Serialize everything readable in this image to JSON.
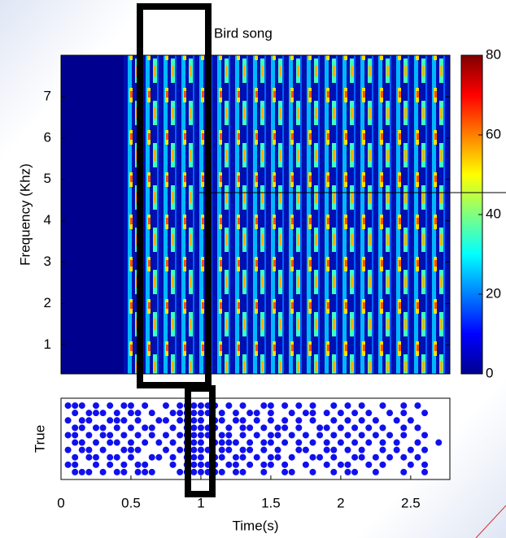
{
  "chart_data": [
    {
      "type": "heatmap",
      "title": "Bird song",
      "ylabel": "Frequency (Khz)",
      "xlim": [
        0,
        2.78
      ],
      "ylim": [
        0.3,
        8
      ],
      "yticks": [
        1,
        2,
        3,
        4,
        5,
        6,
        7
      ],
      "colorbar": {
        "lim": [
          0,
          80
        ],
        "ticks": [
          0,
          20,
          40,
          60,
          80
        ]
      }
    },
    {
      "type": "raster",
      "ylabel": "True",
      "xlabel": "Time(s)",
      "xlim": [
        0,
        2.78
      ],
      "xticks": [
        0,
        0.5,
        1,
        1.5,
        2,
        2.5
      ],
      "ylim": [
        0,
        11
      ],
      "color": "#1010ee",
      "rows": [
        [
          0.1,
          0.15,
          0.2,
          0.3,
          0.4,
          0.45,
          0.55,
          0.6,
          0.65,
          0.85,
          0.9,
          0.95,
          1.0,
          1.05,
          1.1,
          1.15,
          1.25,
          1.3,
          1.45,
          1.6,
          1.65,
          1.8,
          1.95,
          2.05,
          2.1,
          2.25,
          2.45,
          2.6
        ],
        [
          0.05,
          0.1,
          0.25,
          0.35,
          0.45,
          0.55,
          0.6,
          0.8,
          0.9,
          0.95,
          1.0,
          1.05,
          1.1,
          1.2,
          1.25,
          1.35,
          1.45,
          1.5,
          1.6,
          1.75,
          1.9,
          2.0,
          2.05,
          2.2,
          2.3,
          2.5,
          2.6
        ],
        [
          0.1,
          0.2,
          0.25,
          0.35,
          0.4,
          0.5,
          0.65,
          0.7,
          0.8,
          0.9,
          0.95,
          1.0,
          1.1,
          1.15,
          1.25,
          1.3,
          1.4,
          1.5,
          1.55,
          1.65,
          1.8,
          1.85,
          1.95,
          2.1,
          2.15,
          2.25,
          2.35,
          2.45,
          2.55
        ],
        [
          0.05,
          0.15,
          0.2,
          0.3,
          0.45,
          0.5,
          0.55,
          0.75,
          0.85,
          0.9,
          0.95,
          1.0,
          1.05,
          1.15,
          1.2,
          1.3,
          1.35,
          1.45,
          1.55,
          1.7,
          1.75,
          1.9,
          1.95,
          2.05,
          2.15,
          2.3,
          2.4,
          2.5,
          2.6
        ],
        [
          0.1,
          0.15,
          0.25,
          0.35,
          0.4,
          0.5,
          0.6,
          0.7,
          0.8,
          0.9,
          0.95,
          1.0,
          1.1,
          1.15,
          1.2,
          1.25,
          1.35,
          1.45,
          1.5,
          1.6,
          1.7,
          1.8,
          1.9,
          2.0,
          2.1,
          2.2,
          2.3,
          2.4,
          2.55,
          2.7
        ],
        [
          0.05,
          0.1,
          0.2,
          0.3,
          0.35,
          0.45,
          0.55,
          0.65,
          0.75,
          0.85,
          0.9,
          0.95,
          1.0,
          1.05,
          1.15,
          1.2,
          1.3,
          1.4,
          1.5,
          1.55,
          1.65,
          1.75,
          1.85,
          1.95,
          2.05,
          2.15,
          2.25,
          2.35,
          2.45,
          2.6
        ],
        [
          0.1,
          0.15,
          0.25,
          0.3,
          0.4,
          0.5,
          0.6,
          0.65,
          0.8,
          0.9,
          0.95,
          1.0,
          1.05,
          1.1,
          1.2,
          1.3,
          1.35,
          1.45,
          1.55,
          1.6,
          1.7,
          1.85,
          1.9,
          2.0,
          2.1,
          2.2,
          2.3,
          2.45,
          2.55
        ],
        [
          0.05,
          0.15,
          0.2,
          0.35,
          0.4,
          0.45,
          0.55,
          0.7,
          0.75,
          0.85,
          0.9,
          0.95,
          1.0,
          1.1,
          1.15,
          1.25,
          1.3,
          1.4,
          1.5,
          1.6,
          1.7,
          1.8,
          1.95,
          2.05,
          2.15,
          2.25,
          2.4,
          2.5
        ],
        [
          0.1,
          0.2,
          0.25,
          0.3,
          0.4,
          0.5,
          0.55,
          0.65,
          0.8,
          0.85,
          0.9,
          0.95,
          1.0,
          1.05,
          1.15,
          1.25,
          1.35,
          1.4,
          1.5,
          1.65,
          1.75,
          1.8,
          1.9,
          2.0,
          2.1,
          2.2,
          2.35,
          2.45,
          2.6
        ],
        [
          0.05,
          0.1,
          0.15,
          0.25,
          0.35,
          0.45,
          0.5,
          0.6,
          0.75,
          0.85,
          0.9,
          0.95,
          1.0,
          1.05,
          1.1,
          1.2,
          1.3,
          1.45,
          1.5,
          1.6,
          1.7,
          1.8,
          1.95,
          2.05,
          2.15,
          2.3,
          2.45,
          2.55
        ]
      ]
    }
  ]
}
